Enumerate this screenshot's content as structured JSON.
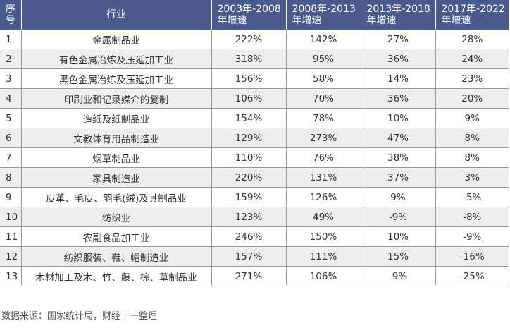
{
  "colors": {
    "header_bg": "#4b5a8c",
    "header_text": "#ffffff",
    "row_alt_bg": "#eeeeee",
    "row_bg": "#ffffff",
    "grid_line": "#9a9a9a"
  },
  "headers": {
    "index_line1": "序",
    "index_line2": "号",
    "industry": "行业",
    "p1_line1": "2003年-2008",
    "p1_line2": "年增速",
    "p2_line1": "2008年-2013",
    "p2_line2": "年增速",
    "p3_line1": "2013年-2018",
    "p3_line2": "年增速",
    "p4_line1": "2017年-2022",
    "p4_line2": "年增速"
  },
  "rows": [
    {
      "idx": "1",
      "industry": "金属制品业",
      "p1": "222%",
      "p2": "142%",
      "p3": "27%",
      "p4": "28%"
    },
    {
      "idx": "2",
      "industry": "有色金属冶炼及压延加工业",
      "p1": "318%",
      "p2": "95%",
      "p3": "36%",
      "p4": "24%"
    },
    {
      "idx": "3",
      "industry": "黑色金属冶炼及压延加工业",
      "p1": "156%",
      "p2": "58%",
      "p3": "14%",
      "p4": "23%"
    },
    {
      "idx": "4",
      "industry": "印刷业和记录媒介的复制",
      "p1": "106%",
      "p2": "70%",
      "p3": "36%",
      "p4": "20%"
    },
    {
      "idx": "5",
      "industry": "造纸及纸制品业",
      "p1": "154%",
      "p2": "78%",
      "p3": "10%",
      "p4": "9%"
    },
    {
      "idx": "6",
      "industry": "文教体育用品制造业",
      "p1": "129%",
      "p2": "273%",
      "p3": "47%",
      "p4": "8%"
    },
    {
      "idx": "7",
      "industry": "烟草制品业",
      "p1": "110%",
      "p2": "76%",
      "p3": "38%",
      "p4": "8%"
    },
    {
      "idx": "8",
      "industry": "家具制造业",
      "p1": "220%",
      "p2": "131%",
      "p3": "37%",
      "p4": "3%"
    },
    {
      "idx": "9",
      "industry": "皮革、毛皮、羽毛(绒)及其制品业",
      "p1": "159%",
      "p2": "126%",
      "p3": "9%",
      "p4": "-5%"
    },
    {
      "idx": "10",
      "industry": "纺织业",
      "p1": "123%",
      "p2": "49%",
      "p3": "-9%",
      "p4": "-8%"
    },
    {
      "idx": "11",
      "industry": "农副食品加工业",
      "p1": "246%",
      "p2": "150%",
      "p3": "10%",
      "p4": "-9%"
    },
    {
      "idx": "12",
      "industry": "纺织服装、鞋、帽制造业",
      "p1": "157%",
      "p2": "111%",
      "p3": "15%",
      "p4": "-16%"
    },
    {
      "idx": "13",
      "industry": "木材加工及木、竹、藤、棕、草制品业",
      "p1": "271%",
      "p2": "106%",
      "p3": "-9%",
      "p4": "-25%"
    }
  ],
  "source_note": "数据来源：国家统计局，财经十一整理"
}
